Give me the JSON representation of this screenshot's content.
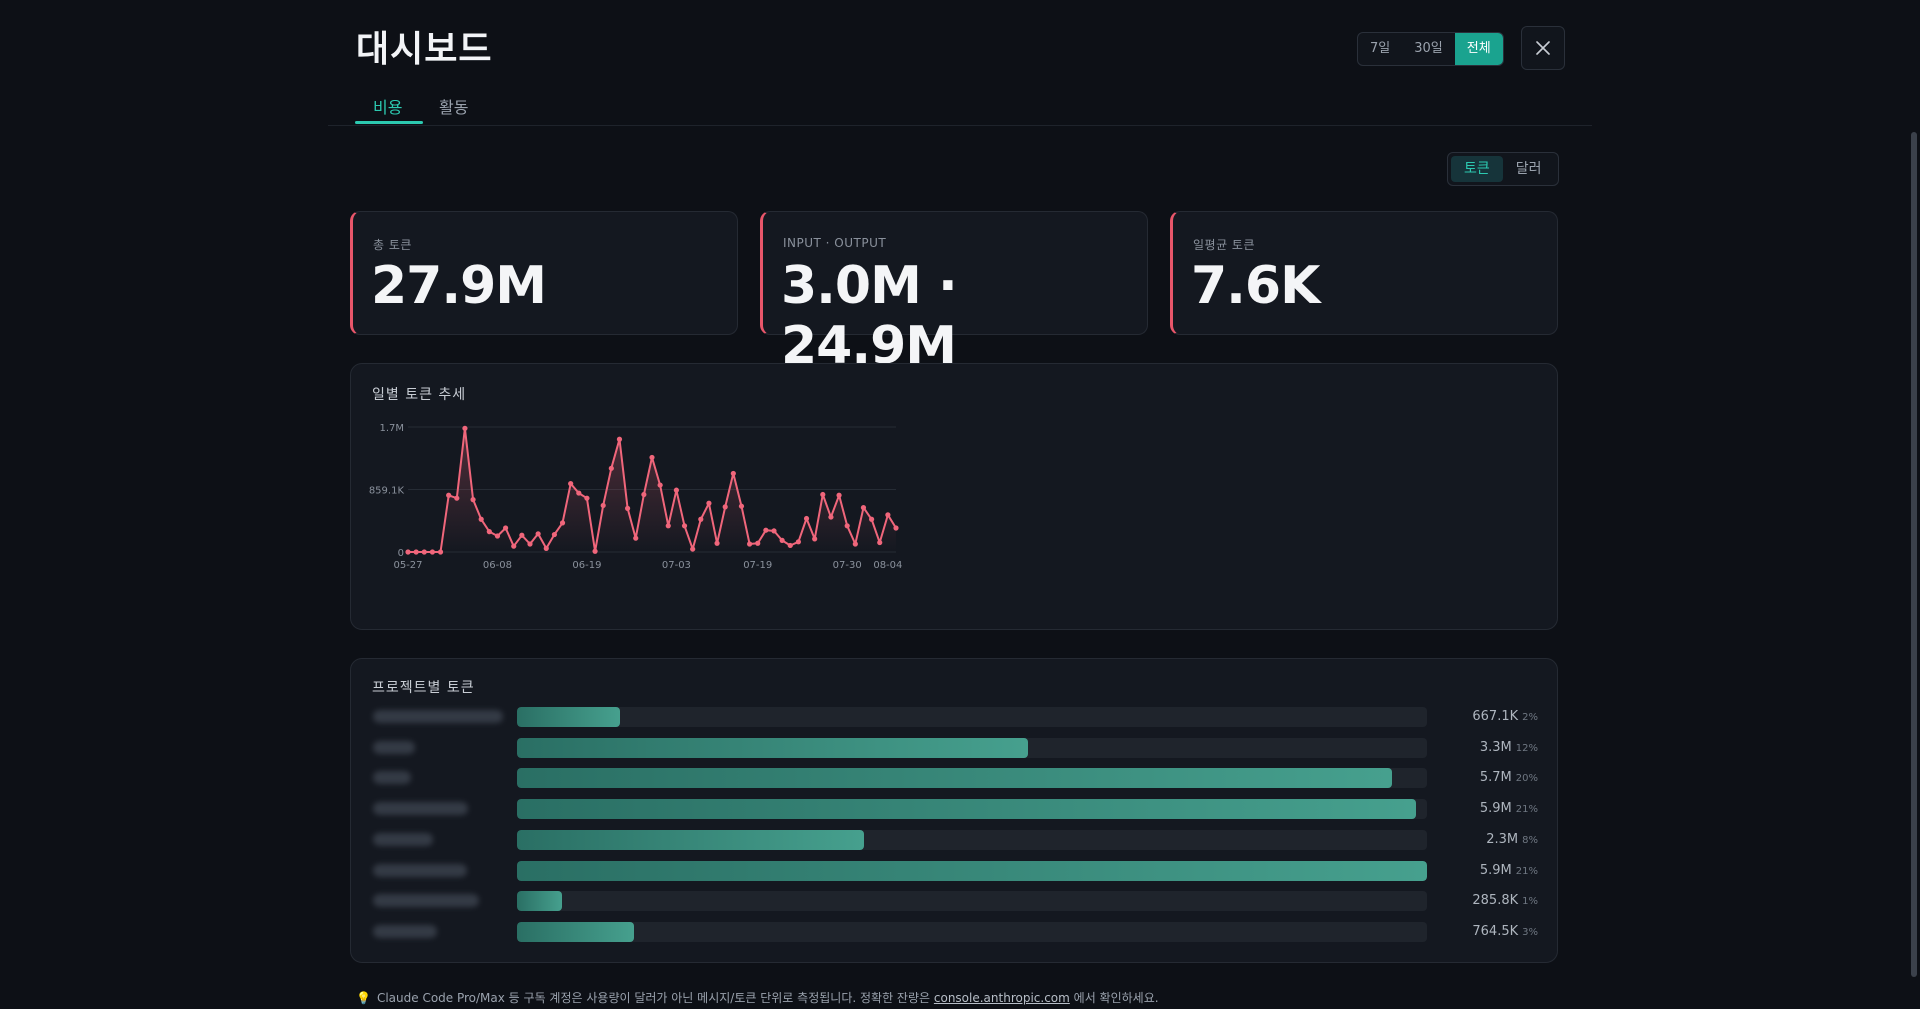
{
  "header": {
    "title": "대시보드",
    "range_options": [
      "7일",
      "30일",
      "전체"
    ],
    "range_selected": "전체"
  },
  "tabs": [
    "비용",
    "활동"
  ],
  "unit_toggle": {
    "options": [
      "토큰",
      "달러"
    ],
    "selected": "토큰"
  },
  "stats": [
    {
      "label": "총 토큰",
      "value": "27.9M"
    },
    {
      "label": "INPUT · OUTPUT",
      "value": "3.0M · 24.9M"
    },
    {
      "label": "일평균 토큰",
      "value": "7.6K"
    }
  ],
  "trend": {
    "title": "일별 토큰 추세"
  },
  "projects": {
    "title": "프로젝트별 토큰",
    "items": [
      {
        "value": "667.1K",
        "pct": "2%",
        "fraction": 0.113
      },
      {
        "value": "3.3M",
        "pct": "12%",
        "fraction": 0.562
      },
      {
        "value": "5.7M",
        "pct": "20%",
        "fraction": 0.961
      },
      {
        "value": "5.9M",
        "pct": "21%",
        "fraction": 0.988
      },
      {
        "value": "2.3M",
        "pct": "8%",
        "fraction": 0.381
      },
      {
        "value": "5.9M",
        "pct": "21%",
        "fraction": 1.0
      },
      {
        "value": "285.8K",
        "pct": "1%",
        "fraction": 0.049
      },
      {
        "value": "764.5K",
        "pct": "3%",
        "fraction": 0.129
      }
    ]
  },
  "footer": {
    "text": "Claude Code Pro/Max 등 구독 계정은 사용량이 달러가 아닌 메시지/토큰 단위로 측정됩니다. 정확한 잔량은",
    "link": "console.anthropic.com",
    "suffix": "에서 확인하세요."
  },
  "colors": {
    "accent": "#2cc9b0",
    "line": "#f0667b",
    "bar": "#46a08e"
  },
  "chart_data": {
    "type": "line",
    "title": "일별 토큰 추세",
    "ytick_labels": [
      "0",
      "859.1K",
      "1.7M"
    ],
    "ylim": [
      0,
      1718200
    ],
    "xtick_labels": [
      "05-27",
      "06-08",
      "06-19",
      "07-03",
      "07-19",
      "07-30",
      "08-04"
    ],
    "grid": true,
    "series": [
      {
        "values": [
          0,
          0,
          0,
          0,
          0,
          780000,
          740000,
          1700000,
          720000,
          450000,
          280000,
          220000,
          330000,
          80000,
          230000,
          110000,
          250000,
          50000,
          240000,
          400000,
          940000,
          810000,
          740000,
          10000,
          640000,
          1150000,
          1550000,
          600000,
          190000,
          790000,
          1300000,
          920000,
          360000,
          850000,
          360000,
          40000,
          450000,
          670000,
          120000,
          620000,
          1080000,
          630000,
          110000,
          120000,
          300000,
          290000,
          160000,
          90000,
          140000,
          460000,
          180000,
          790000,
          480000,
          780000,
          360000,
          110000,
          610000,
          450000,
          130000,
          510000,
          330000
        ]
      }
    ]
  }
}
